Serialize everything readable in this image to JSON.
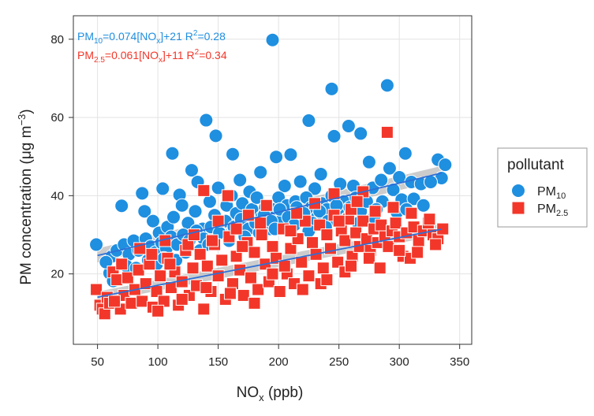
{
  "chart_data": {
    "type": "scatter",
    "xlabel": "NO",
    "xlabel_sub": "x",
    "xlabel_unit": " (ppb)",
    "ylabel": "PM concentration (μg m",
    "ylabel_sup": "−3",
    "ylabel_end": ")",
    "xlim": [
      30,
      360
    ],
    "ylim": [
      2,
      86
    ],
    "x_ticks": [
      50,
      100,
      150,
      200,
      250,
      300,
      350
    ],
    "y_ticks": [
      20,
      40,
      60,
      80
    ],
    "grid": true,
    "legend": {
      "title": "pollutant",
      "position": "right",
      "entries": [
        {
          "label": "PM",
          "sub": "10",
          "marker": "circle",
          "color": "#1F8FE0"
        },
        {
          "label": "PM",
          "sub": "2.5",
          "marker": "square",
          "color": "#F2372A"
        }
      ]
    },
    "annotations": [
      {
        "text": "PM",
        "sub": "10",
        "eq_a": "=0.074[NO",
        "eq_sub": "x",
        "eq_b": "]+21 R",
        "eq_sup": "2",
        "eq_c": "=0.28",
        "color": "#1F8FE0"
      },
      {
        "text": "PM",
        "sub": "2.5",
        "eq_a": "=0.061[NO",
        "eq_sub": "x",
        "eq_b": "]+11 R",
        "eq_sup": "2",
        "eq_c": "=0.34",
        "color": "#F2372A"
      }
    ],
    "series": [
      {
        "name": "PM10",
        "marker": "circle",
        "color": "#1F8FE0",
        "fit": {
          "slope": 0.074,
          "intercept": 21,
          "x_range": [
            50,
            335
          ],
          "band": 1.8
        },
        "points": [
          [
            49,
            27.5
          ],
          [
            195,
            79.8
          ],
          [
            290,
            68.2
          ],
          [
            244,
            67.3
          ],
          [
            140,
            59.3
          ],
          [
            225,
            59.2
          ],
          [
            258,
            57.8
          ],
          [
            268,
            55.9
          ],
          [
            148,
            55.3
          ],
          [
            246,
            55.2
          ],
          [
            112,
            50.8
          ],
          [
            162,
            50.6
          ],
          [
            210,
            50.5
          ],
          [
            198,
            49.9
          ],
          [
            305,
            50.8
          ],
          [
            332,
            49.2
          ],
          [
            275,
            48.6
          ],
          [
            338,
            47.9
          ],
          [
            292,
            47.0
          ],
          [
            128,
            46.5
          ],
          [
            185,
            46.0
          ],
          [
            235,
            45.5
          ],
          [
            300,
            44.7
          ],
          [
            335,
            44.5
          ],
          [
            87,
            40.6
          ],
          [
            70,
            37.4
          ],
          [
            104,
            41.8
          ],
          [
            118,
            40.2
          ],
          [
            133,
            43.5
          ],
          [
            150,
            42.0
          ],
          [
            168,
            44.0
          ],
          [
            176,
            41.0
          ],
          [
            205,
            42.5
          ],
          [
            218,
            43.6
          ],
          [
            230,
            41.8
          ],
          [
            251,
            43.0
          ],
          [
            262,
            42.5
          ],
          [
            278,
            42.0
          ],
          [
            285,
            44.0
          ],
          [
            310,
            43.5
          ],
          [
            318,
            43.0
          ],
          [
            326,
            43.5
          ],
          [
            295,
            41.5
          ],
          [
            302,
            39.0
          ],
          [
            298,
            35.8
          ],
          [
            312,
            39.2
          ],
          [
            286,
            38.5
          ],
          [
            89,
            36.0
          ],
          [
            96,
            33.5
          ],
          [
            101,
            30.5
          ],
          [
            108,
            32.0
          ],
          [
            113,
            34.5
          ],
          [
            120,
            37.5
          ],
          [
            125,
            33.0
          ],
          [
            131,
            36.0
          ],
          [
            137,
            31.5
          ],
          [
            143,
            38.5
          ],
          [
            147,
            35.0
          ],
          [
            153,
            33.0
          ],
          [
            157,
            37.5
          ],
          [
            161,
            40.0
          ],
          [
            165,
            35.5
          ],
          [
            170,
            38.0
          ],
          [
            173,
            33.5
          ],
          [
            178,
            36.5
          ],
          [
            182,
            39.5
          ],
          [
            186,
            34.5
          ],
          [
            189,
            37.0
          ],
          [
            193,
            31.5
          ],
          [
            196,
            36.5
          ],
          [
            200,
            39.5
          ],
          [
            203,
            34.0
          ],
          [
            207,
            37.5
          ],
          [
            211,
            33.0
          ],
          [
            214,
            38.5
          ],
          [
            219,
            35.0
          ],
          [
            223,
            39.5
          ],
          [
            227,
            37.0
          ],
          [
            232,
            34.5
          ],
          [
            236,
            38.0
          ],
          [
            240,
            36.5
          ],
          [
            244,
            40.0
          ],
          [
            249,
            35.5
          ],
          [
            254,
            38.5
          ],
          [
            259,
            37.0
          ],
          [
            264,
            39.5
          ],
          [
            268,
            36.0
          ],
          [
            273,
            38.5
          ],
          [
            281,
            36.5
          ],
          [
            62,
            24.5
          ],
          [
            66,
            26.0
          ],
          [
            72,
            27.5
          ],
          [
            76,
            25.0
          ],
          [
            80,
            28.5
          ],
          [
            84,
            26.0
          ],
          [
            90,
            29.0
          ],
          [
            94,
            27.0
          ],
          [
            98,
            25.5
          ],
          [
            103,
            28.0
          ],
          [
            107,
            26.5
          ],
          [
            111,
            29.5
          ],
          [
            116,
            27.5
          ],
          [
            121,
            30.0
          ],
          [
            126,
            28.5
          ],
          [
            132,
            31.0
          ],
          [
            138,
            29.0
          ],
          [
            144,
            32.0
          ],
          [
            151,
            30.5
          ],
          [
            156,
            33.5
          ],
          [
            163,
            32.0
          ],
          [
            169,
            34.0
          ],
          [
            175,
            31.5
          ],
          [
            181,
            33.0
          ],
          [
            188,
            35.0
          ],
          [
            194,
            33.5
          ],
          [
            201,
            36.5
          ],
          [
            208,
            34.5
          ],
          [
            215,
            37.0
          ],
          [
            221,
            35.5
          ],
          [
            228,
            33.0
          ],
          [
            234,
            36.0
          ],
          [
            241,
            33.5
          ],
          [
            248,
            37.5
          ],
          [
            256,
            34.0
          ],
          [
            60,
            20.2
          ],
          [
            63,
            18.2
          ],
          [
            57,
            23.0
          ],
          [
            74,
            22.0
          ],
          [
            82,
            21.5
          ],
          [
            92,
            23.5
          ],
          [
            99,
            22.5
          ],
          [
            105,
            24.0
          ],
          [
            115,
            23.5
          ],
          [
            123,
            25.5
          ],
          [
            135,
            26.0
          ],
          [
            142,
            27.5
          ],
          [
            159,
            28.5
          ],
          [
            172,
            29.5
          ],
          [
            184,
            30.5
          ],
          [
            197,
            31.5
          ],
          [
            213,
            32.5
          ],
          [
            225,
            31.0
          ],
          [
            239,
            32.0
          ],
          [
            252,
            31.5
          ],
          [
            266,
            33.0
          ],
          [
            279,
            34.5
          ],
          [
            306,
            36.5
          ],
          [
            320,
            37.5
          ]
        ]
      },
      {
        "name": "PM2.5",
        "marker": "square",
        "color": "#F2372A",
        "fit": {
          "slope": 0.061,
          "intercept": 11,
          "x_range": [
            50,
            335
          ],
          "band": 1.4
        },
        "points": [
          [
            290,
            56.2
          ],
          [
            138,
            41.3
          ],
          [
            158,
            40.0
          ],
          [
            246,
            40.5
          ],
          [
            270,
            41.0
          ],
          [
            49,
            16.0
          ],
          [
            52,
            12.0
          ],
          [
            54,
            11.0
          ],
          [
            56,
            9.8
          ],
          [
            58,
            14.0
          ],
          [
            60,
            12.5
          ],
          [
            63,
            20.5
          ],
          [
            66,
            18.5
          ],
          [
            69,
            11.0
          ],
          [
            72,
            14.5
          ],
          [
            75,
            19.0
          ],
          [
            78,
            12.5
          ],
          [
            81,
            16.0
          ],
          [
            84,
            21.0
          ],
          [
            87,
            13.0
          ],
          [
            90,
            17.5
          ],
          [
            93,
            22.5
          ],
          [
            96,
            11.5
          ],
          [
            99,
            15.5
          ],
          [
            102,
            19.5
          ],
          [
            105,
            13.0
          ],
          [
            108,
            24.0
          ],
          [
            111,
            16.5
          ],
          [
            114,
            20.5
          ],
          [
            117,
            12.0
          ],
          [
            120,
            18.0
          ],
          [
            123,
            26.0
          ],
          [
            126,
            14.5
          ],
          [
            129,
            21.5
          ],
          [
            132,
            17.0
          ],
          [
            135,
            25.0
          ],
          [
            138,
            11.0
          ],
          [
            141,
            22.0
          ],
          [
            144,
            15.5
          ],
          [
            147,
            27.5
          ],
          [
            150,
            19.5
          ],
          [
            153,
            23.5
          ],
          [
            156,
            13.5
          ],
          [
            159,
            29.5
          ],
          [
            162,
            17.5
          ],
          [
            165,
            24.5
          ],
          [
            168,
            21.0
          ],
          [
            171,
            14.5
          ],
          [
            174,
            28.0
          ],
          [
            177,
            19.0
          ],
          [
            180,
            25.5
          ],
          [
            183,
            16.0
          ],
          [
            186,
            30.0
          ],
          [
            189,
            22.5
          ],
          [
            192,
            18.0
          ],
          [
            195,
            27.0
          ],
          [
            198,
            24.0
          ],
          [
            201,
            15.5
          ],
          [
            204,
            31.5
          ],
          [
            207,
            20.0
          ],
          [
            210,
            26.5
          ],
          [
            213,
            17.5
          ],
          [
            216,
            29.0
          ],
          [
            219,
            23.0
          ],
          [
            222,
            33.5
          ],
          [
            225,
            19.5
          ],
          [
            228,
            28.0
          ],
          [
            231,
            25.0
          ],
          [
            234,
            32.5
          ],
          [
            237,
            21.5
          ],
          [
            240,
            30.0
          ],
          [
            243,
            26.5
          ],
          [
            246,
            35.0
          ],
          [
            249,
            23.0
          ],
          [
            252,
            31.0
          ],
          [
            255,
            28.5
          ],
          [
            258,
            34.0
          ],
          [
            261,
            24.5
          ],
          [
            264,
            30.5
          ],
          [
            267,
            27.0
          ],
          [
            270,
            33.5
          ],
          [
            273,
            29.0
          ],
          [
            276,
            26.0
          ],
          [
            279,
            31.5
          ],
          [
            282,
            28.0
          ],
          [
            285,
            32.5
          ],
          [
            288,
            29.5
          ],
          [
            291,
            27.0
          ],
          [
            294,
            31.0
          ],
          [
            297,
            33.0
          ],
          [
            300,
            29.5
          ],
          [
            303,
            24.5
          ],
          [
            306,
            30.5
          ],
          [
            309,
            24.0
          ],
          [
            312,
            32.0
          ],
          [
            316,
            28.5
          ],
          [
            320,
            31.0
          ],
          [
            324,
            33.0
          ],
          [
            328,
            30.0
          ],
          [
            332,
            29.0
          ],
          [
            336,
            31.5
          ],
          [
            260,
            36.5
          ],
          [
            255,
            20.5
          ],
          [
            235,
            17.5
          ],
          [
            215,
            35.5
          ],
          [
            205,
            22.0
          ],
          [
            185,
            33.0
          ],
          [
            175,
            35.0
          ],
          [
            165,
            31.5
          ],
          [
            145,
            28.5
          ],
          [
            125,
            27.5
          ],
          [
            110,
            22.5
          ],
          [
            95,
            25.0
          ],
          [
            85,
            26.5
          ],
          [
            70,
            22.5
          ],
          [
            64,
            13.0
          ],
          [
            100,
            10.5
          ],
          [
            120,
            13.5
          ],
          [
            140,
            16.5
          ],
          [
            160,
            15.0
          ],
          [
            180,
            12.5
          ],
          [
            195,
            20.0
          ],
          [
            220,
            16.0
          ],
          [
            240,
            18.5
          ],
          [
            260,
            22.0
          ],
          [
            275,
            24.0
          ],
          [
            284,
            21.5
          ],
          [
            300,
            26.0
          ],
          [
            315,
            25.5
          ],
          [
            330,
            27.5
          ],
          [
            106,
            28.5
          ],
          [
            130,
            30.0
          ],
          [
            150,
            33.5
          ],
          [
            170,
            27.0
          ],
          [
            190,
            37.5
          ],
          [
            210,
            31.0
          ],
          [
            230,
            38.0
          ],
          [
            250,
            33.5
          ],
          [
            265,
            38.5
          ],
          [
            280,
            36.0
          ],
          [
            295,
            37.0
          ],
          [
            310,
            35.5
          ],
          [
            325,
            34.0
          ]
        ]
      }
    ]
  }
}
